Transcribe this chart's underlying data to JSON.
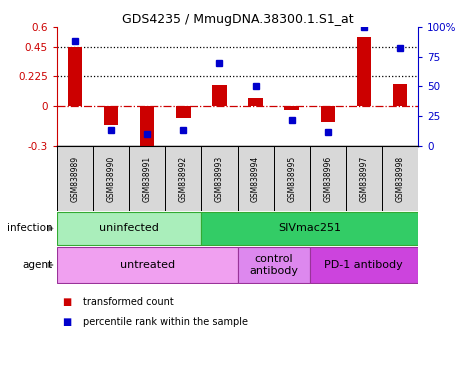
{
  "title": "GDS4235 / MmugDNA.38300.1.S1_at",
  "samples": [
    "GSM838989",
    "GSM838990",
    "GSM838991",
    "GSM838992",
    "GSM838993",
    "GSM838994",
    "GSM838995",
    "GSM838996",
    "GSM838997",
    "GSM838998"
  ],
  "transformed_count": [
    0.45,
    -0.14,
    -0.32,
    -0.09,
    0.16,
    0.065,
    -0.03,
    -0.12,
    0.52,
    0.17
  ],
  "percentile_rank": [
    88,
    13,
    10,
    13,
    70,
    50,
    22,
    12,
    100,
    82
  ],
  "ylim_left": [
    -0.3,
    0.6
  ],
  "ylim_right": [
    0,
    100
  ],
  "yticks_left": [
    -0.3,
    0,
    0.225,
    0.45,
    0.6
  ],
  "yticks_right": [
    0,
    25,
    50,
    75,
    100
  ],
  "hlines": [
    0.45,
    0.225
  ],
  "bar_color": "#cc0000",
  "point_color": "#0000cc",
  "zero_line_color": "#cc0000",
  "infection_groups": [
    {
      "label": "uninfected",
      "start": 0,
      "end": 3,
      "color": "#aaeebb"
    },
    {
      "label": "SIVmac251",
      "start": 4,
      "end": 9,
      "color": "#33cc66"
    }
  ],
  "agent_groups": [
    {
      "label": "untreated",
      "start": 0,
      "end": 4,
      "color": "#f0a0f0"
    },
    {
      "label": "control\nantibody",
      "start": 5,
      "end": 6,
      "color": "#dd88ee"
    },
    {
      "label": "PD-1 antibody",
      "start": 7,
      "end": 9,
      "color": "#cc44dd"
    }
  ],
  "infection_label": "infection",
  "agent_label": "agent",
  "legend_items": [
    {
      "label": "transformed count",
      "color": "#cc0000"
    },
    {
      "label": "percentile rank within the sample",
      "color": "#0000cc"
    }
  ]
}
